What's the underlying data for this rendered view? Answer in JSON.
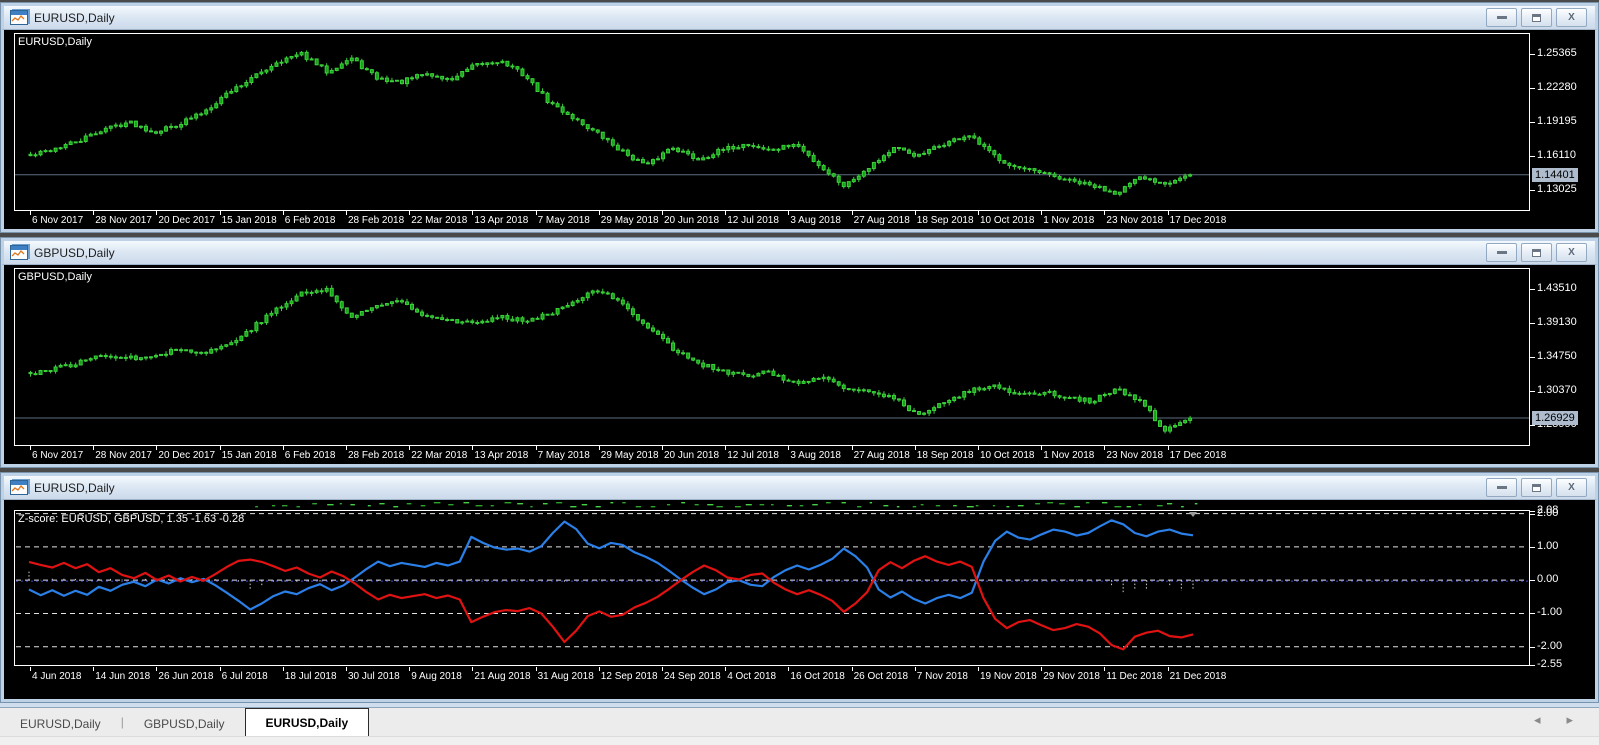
{
  "windows": [
    {
      "title": "EURUSD,Daily",
      "symbol_label": "EURUSD,Daily",
      "controls": {
        "minimize": "minimize",
        "restore": "restore",
        "close": "close"
      },
      "price_axis": {
        "tick_labels": [
          "1.25365",
          "1.22280",
          "1.19195",
          "1.16110",
          "1.13025"
        ],
        "current": "1.14401"
      }
    },
    {
      "title": "GBPUSD,Daily",
      "symbol_label": "GBPUSD,Daily",
      "controls": {
        "minimize": "minimize",
        "restore": "restore",
        "close": "close"
      },
      "price_axis": {
        "tick_labels": [
          "1.43510",
          "1.39130",
          "1.34750",
          "1.30370",
          "1.25990"
        ],
        "current": "1.26929"
      }
    },
    {
      "title": "EURUSD,Daily",
      "indicator_label": "Z-score: EURUSD, GBPUSD,  1.35 -1.63 -0.28",
      "controls": {
        "minimize": "minimize",
        "restore": "restore",
        "close": "close"
      },
      "value_axis": {
        "tick_labels": [
          "2.08",
          "2.00",
          "1.00",
          "0.00",
          "-1.00",
          "-2.00",
          "-2.55"
        ]
      }
    }
  ],
  "taskbar": {
    "tabs": [
      {
        "label": "EURUSD,Daily",
        "active": false
      },
      {
        "label": "GBPUSD,Daily",
        "active": false
      },
      {
        "label": "EURUSD,Daily",
        "active": true
      }
    ],
    "nav_left": "◂",
    "nav_right": "▸"
  },
  "chart_data": [
    {
      "type": "candlestick",
      "title": "EURUSD,Daily",
      "bars": 232,
      "candle_color": "#3bd13b",
      "candle_fill": "#18a018",
      "ylim": [
        1.112,
        1.272
      ],
      "y_ticks": [
        1.25365,
        1.2228,
        1.19195,
        1.1611,
        1.13025
      ],
      "current_price": 1.14401,
      "wiggle": 0.0042,
      "seed": 42,
      "x_ticks": [
        "6 Nov 2017",
        "28 Nov 2017",
        "20 Dec 2017",
        "15 Jan 2018",
        "6 Feb 2018",
        "28 Feb 2018",
        "22 Mar 2018",
        "13 Apr 2018",
        "7 May 2018",
        "29 May 2018",
        "20 Jun 2018",
        "12 Jul 2018",
        "3 Aug 2018",
        "27 Aug 2018",
        "18 Sep 2018",
        "10 Oct 2018",
        "1 Nov 2018",
        "23 Nov 2018",
        "17 Dec 2018"
      ],
      "price_path": [
        1.161,
        1.168,
        1.175,
        1.186,
        1.192,
        1.183,
        1.19,
        1.201,
        1.219,
        1.232,
        1.247,
        1.2536,
        1.238,
        1.25,
        1.232,
        1.228,
        1.236,
        1.23,
        1.243,
        1.248,
        1.235,
        1.21,
        1.196,
        1.181,
        1.165,
        1.152,
        1.17,
        1.158,
        1.166,
        1.172,
        1.166,
        1.172,
        1.152,
        1.134,
        1.152,
        1.168,
        1.161,
        1.172,
        1.18,
        1.162,
        1.15,
        1.145,
        1.139,
        1.134,
        1.128,
        1.141,
        1.137,
        1.14401
      ]
    },
    {
      "type": "candlestick",
      "title": "GBPUSD,Daily",
      "bars": 232,
      "candle_color": "#3bd13b",
      "candle_fill": "#18a018",
      "ylim": [
        1.2345,
        1.4615
      ],
      "y_ticks": [
        1.4351,
        1.3913,
        1.3475,
        1.3037,
        1.2599
      ],
      "current_price": 1.26929,
      "wiggle": 0.006,
      "seed": 77,
      "x_ticks": [
        "6 Nov 2017",
        "28 Nov 2017",
        "20 Dec 2017",
        "15 Jan 2018",
        "6 Feb 2018",
        "28 Feb 2018",
        "22 Mar 2018",
        "13 Apr 2018",
        "7 May 2018",
        "29 May 2018",
        "20 Jun 2018",
        "12 Jul 2018",
        "3 Aug 2018",
        "27 Aug 2018",
        "18 Sep 2018",
        "10 Oct 2018",
        "1 Nov 2018",
        "23 Nov 2018",
        "17 Dec 2018"
      ],
      "price_path": [
        1.327,
        1.333,
        1.341,
        1.352,
        1.346,
        1.351,
        1.358,
        1.353,
        1.364,
        1.386,
        1.41,
        1.43,
        1.4351,
        1.398,
        1.414,
        1.421,
        1.402,
        1.396,
        1.391,
        1.399,
        1.396,
        1.403,
        1.421,
        1.4341,
        1.416,
        1.388,
        1.36,
        1.341,
        1.33,
        1.323,
        1.329,
        1.313,
        1.321,
        1.308,
        1.302,
        1.296,
        1.272,
        1.289,
        1.303,
        1.313,
        1.299,
        1.303,
        1.297,
        1.291,
        1.306,
        1.29,
        1.252,
        1.26929
      ]
    },
    {
      "type": "line",
      "title": "Z-score: EURUSD, GBPUSD",
      "ylim": [
        -2.55,
        2.08
      ],
      "gridlines": [
        2.0,
        1.0,
        0.0,
        -1.0,
        -2.0
      ],
      "last_values": [
        1.35,
        -1.63,
        -0.28
      ],
      "zero_line_color": "#4747d8",
      "x_ticks": [
        "4 Jun 2018",
        "14 Jun 2018",
        "26 Jun 2018",
        "6 Jul 2018",
        "18 Jul 2018",
        "30 Jul 2018",
        "9 Aug 2018",
        "21 Aug 2018",
        "31 Aug 2018",
        "12 Sep 2018",
        "24 Sep 2018",
        "4 Oct 2018",
        "16 Oct 2018",
        "26 Oct 2018",
        "7 Nov 2018",
        "19 Nov 2018",
        "29 Nov 2018",
        "11 Dec 2018",
        "21 Dec 2018"
      ],
      "series": [
        {
          "name": "EURUSD z-score",
          "color": "#2b80e8",
          "values": [
            -0.28,
            -0.45,
            -0.3,
            -0.47,
            -0.32,
            -0.44,
            -0.2,
            -0.32,
            -0.14,
            -0.05,
            -0.18,
            0.02,
            -0.1,
            0.06,
            -0.06,
            0.04,
            -0.15,
            -0.38,
            -0.62,
            -0.88,
            -0.7,
            -0.48,
            -0.34,
            -0.42,
            -0.24,
            -0.12,
            -0.3,
            -0.16,
            0.08,
            0.34,
            0.56,
            0.42,
            0.52,
            0.46,
            0.4,
            0.52,
            0.44,
            0.56,
            1.3,
            1.12,
            0.98,
            0.92,
            0.95,
            0.86,
            1.02,
            1.42,
            1.76,
            1.54,
            1.1,
            0.96,
            1.12,
            1.06,
            0.84,
            0.7,
            0.52,
            0.28,
            0.02,
            -0.22,
            -0.42,
            -0.28,
            -0.06,
            0.0,
            -0.14,
            -0.18,
            0.1,
            0.3,
            0.44,
            0.32,
            0.46,
            0.64,
            0.95,
            0.72,
            0.38,
            -0.28,
            -0.52,
            -0.34,
            -0.56,
            -0.7,
            -0.54,
            -0.44,
            -0.54,
            -0.38,
            0.56,
            1.18,
            1.46,
            1.28,
            1.22,
            1.38,
            1.52,
            1.46,
            1.34,
            1.42,
            1.62,
            1.8,
            1.68,
            1.42,
            1.32,
            1.46,
            1.52,
            1.4,
            1.35
          ]
        },
        {
          "name": "GBPUSD z-score",
          "color": "#e01212",
          "values": [
            0.55,
            0.46,
            0.38,
            0.52,
            0.36,
            0.48,
            0.24,
            0.36,
            0.16,
            0.06,
            0.22,
            0.0,
            0.14,
            -0.04,
            0.1,
            -0.02,
            0.18,
            0.4,
            0.58,
            0.62,
            0.55,
            0.42,
            0.28,
            0.38,
            0.2,
            0.08,
            0.26,
            0.12,
            -0.1,
            -0.36,
            -0.58,
            -0.44,
            -0.54,
            -0.48,
            -0.42,
            -0.54,
            -0.46,
            -0.58,
            -1.26,
            -1.1,
            -0.96,
            -0.9,
            -0.93,
            -0.84,
            -1.0,
            -1.4,
            -1.86,
            -1.52,
            -1.08,
            -0.94,
            -1.1,
            -1.04,
            -0.82,
            -0.68,
            -0.5,
            -0.26,
            0.0,
            0.24,
            0.44,
            0.3,
            0.08,
            0.02,
            0.16,
            0.2,
            -0.08,
            -0.28,
            -0.42,
            -0.3,
            -0.44,
            -0.62,
            -0.95,
            -0.7,
            -0.36,
            0.3,
            0.54,
            0.36,
            0.58,
            0.72,
            0.56,
            0.46,
            0.56,
            0.4,
            -0.54,
            -1.16,
            -1.44,
            -1.26,
            -1.2,
            -1.36,
            -1.5,
            -1.44,
            -1.32,
            -1.4,
            -1.6,
            -1.95,
            -2.08,
            -1.7,
            -1.58,
            -1.52,
            -1.68,
            -1.72,
            -1.63
          ]
        }
      ],
      "spread_histogram": "dotted white ticks = sum of the two series (last = -0.28)"
    }
  ]
}
